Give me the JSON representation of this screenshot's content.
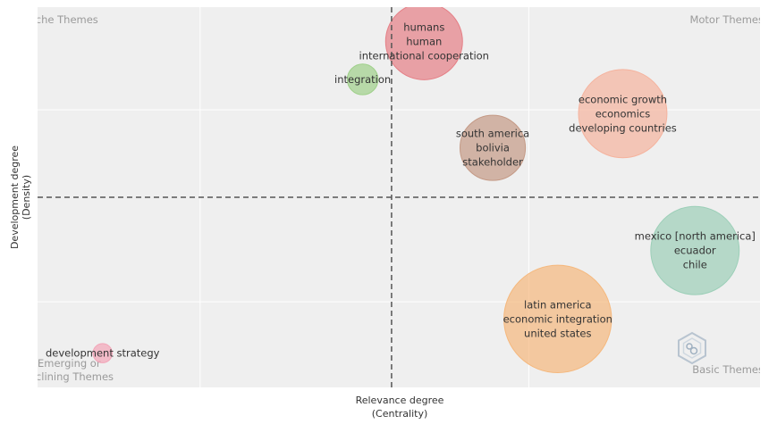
{
  "chart_data": {
    "type": "scatter",
    "title": "",
    "xlabel": [
      "Relevance degree",
      "(Centrality)"
    ],
    "ylabel": [
      "Development degree",
      "(Density)"
    ],
    "xlim": [
      0,
      10
    ],
    "ylim": [
      0,
      10
    ],
    "x_threshold": 4.9,
    "y_threshold": 5.0,
    "grid": true,
    "quadrants": {
      "top_left": "Niche Themes",
      "top_right": "Motor Themes",
      "bottom_left": [
        "Emerging or",
        "Declining Themes"
      ],
      "bottom_right": "Basic Themes"
    },
    "points": [
      {
        "x": 5.35,
        "y": 9.1,
        "size": 1.0,
        "color": "#e57f86",
        "labels": [
          "humans",
          "human",
          "international cooperation"
        ]
      },
      {
        "x": 4.5,
        "y": 8.1,
        "size": 0.4,
        "color": "#9fd08a",
        "labels": [
          "integration"
        ]
      },
      {
        "x": 8.1,
        "y": 7.2,
        "size": 1.15,
        "color": "#f5b39e",
        "labels": [
          "economic growth",
          "economics",
          "developing countries"
        ]
      },
      {
        "x": 6.3,
        "y": 6.3,
        "size": 0.85,
        "color": "#c49a86",
        "labels": [
          "south america",
          "bolivia",
          "stakeholder"
        ]
      },
      {
        "x": 9.1,
        "y": 3.6,
        "size": 1.15,
        "color": "#9ccfb8",
        "labels": [
          "mexico [north america]",
          "ecuador",
          "chile"
        ]
      },
      {
        "x": 7.2,
        "y": 1.8,
        "size": 1.4,
        "color": "#f5b87d",
        "labels": [
          "latin america",
          "economic integration",
          "united states"
        ]
      },
      {
        "x": 0.9,
        "y": 0.9,
        "size": 0.25,
        "color": "#f3a5b8",
        "labels": [
          "development strategy"
        ]
      }
    ]
  }
}
